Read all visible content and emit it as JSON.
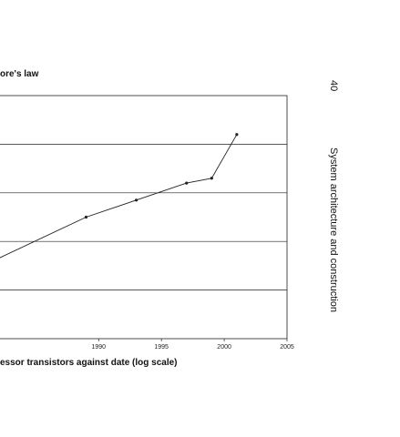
{
  "page": {
    "page_number": "40",
    "running_title": "System architecture and construction"
  },
  "chart_data": {
    "type": "line",
    "title": "ore's law",
    "caption": "essor transistors against date (log scale)",
    "xlabel": "",
    "ylabel": "",
    "x_tick_labels": [
      "1990",
      "1995",
      "2000",
      "2005"
    ],
    "xlim": [
      1982,
      2005
    ],
    "y_scale": "log",
    "ylim_decades": [
      0,
      5
    ],
    "grid": "horizontal",
    "series": [
      {
        "x": [
          1982,
          1989,
          1993,
          1997,
          1999,
          2001
        ],
        "y_decades": [
          1.65,
          2.5,
          2.85,
          3.2,
          3.3,
          4.2
        ]
      }
    ]
  }
}
